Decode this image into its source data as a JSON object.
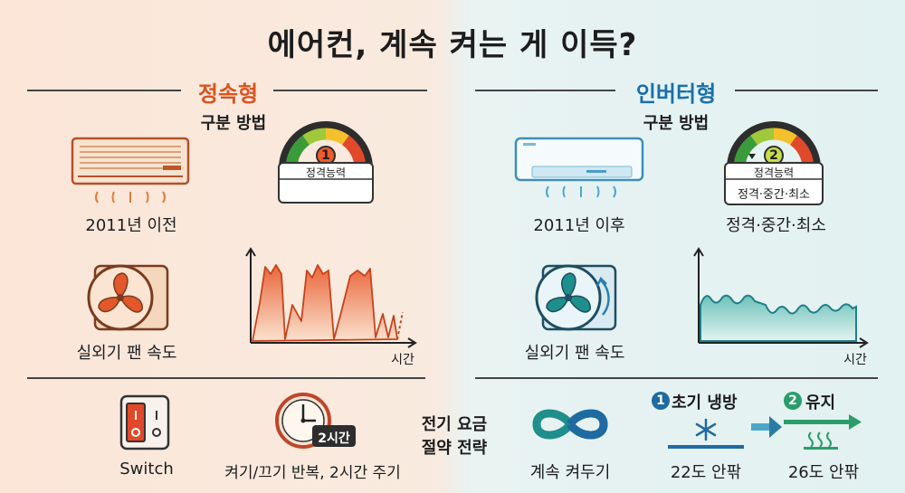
{
  "title": "에어컨, 계속 켜는 게 이득?",
  "left": {
    "heading": "정속형",
    "method_label": "구분 방법",
    "unit_caption": "2011년 이전",
    "gauge_number": "1",
    "gauge_card": "정격능력",
    "fan_caption": "실외기 팬 속도",
    "axis_time": "시간",
    "switch_caption": "Switch",
    "clock_badge": "2시간",
    "cycle_caption": "켜기/끄기 반복, 2시간 주기"
  },
  "right": {
    "heading": "인버터형",
    "method_label": "구분 방법",
    "unit_caption": "2011년 이후",
    "gauge_number": "2",
    "gauge_card": "정격능력",
    "gauge_card_sub": "정격·중간·최소",
    "gauge_caption": "정격·중간·최소",
    "fan_caption": "실외기 팬 속도",
    "axis_time": "시간",
    "continuous_caption": "계속 켜두기",
    "step1_number": "1",
    "step1_label": "초기 냉방",
    "step1_caption": "22도 안팎",
    "step2_number": "2",
    "step2_label": "유지",
    "step2_caption": "26도 안팎"
  },
  "center": {
    "strategy_line1": "전기 요금",
    "strategy_line2": "절약 전략"
  },
  "colors": {
    "fixed_accent": "#d9531e",
    "inverter_accent": "#1a6fa8",
    "teal": "#1e8f8a"
  }
}
